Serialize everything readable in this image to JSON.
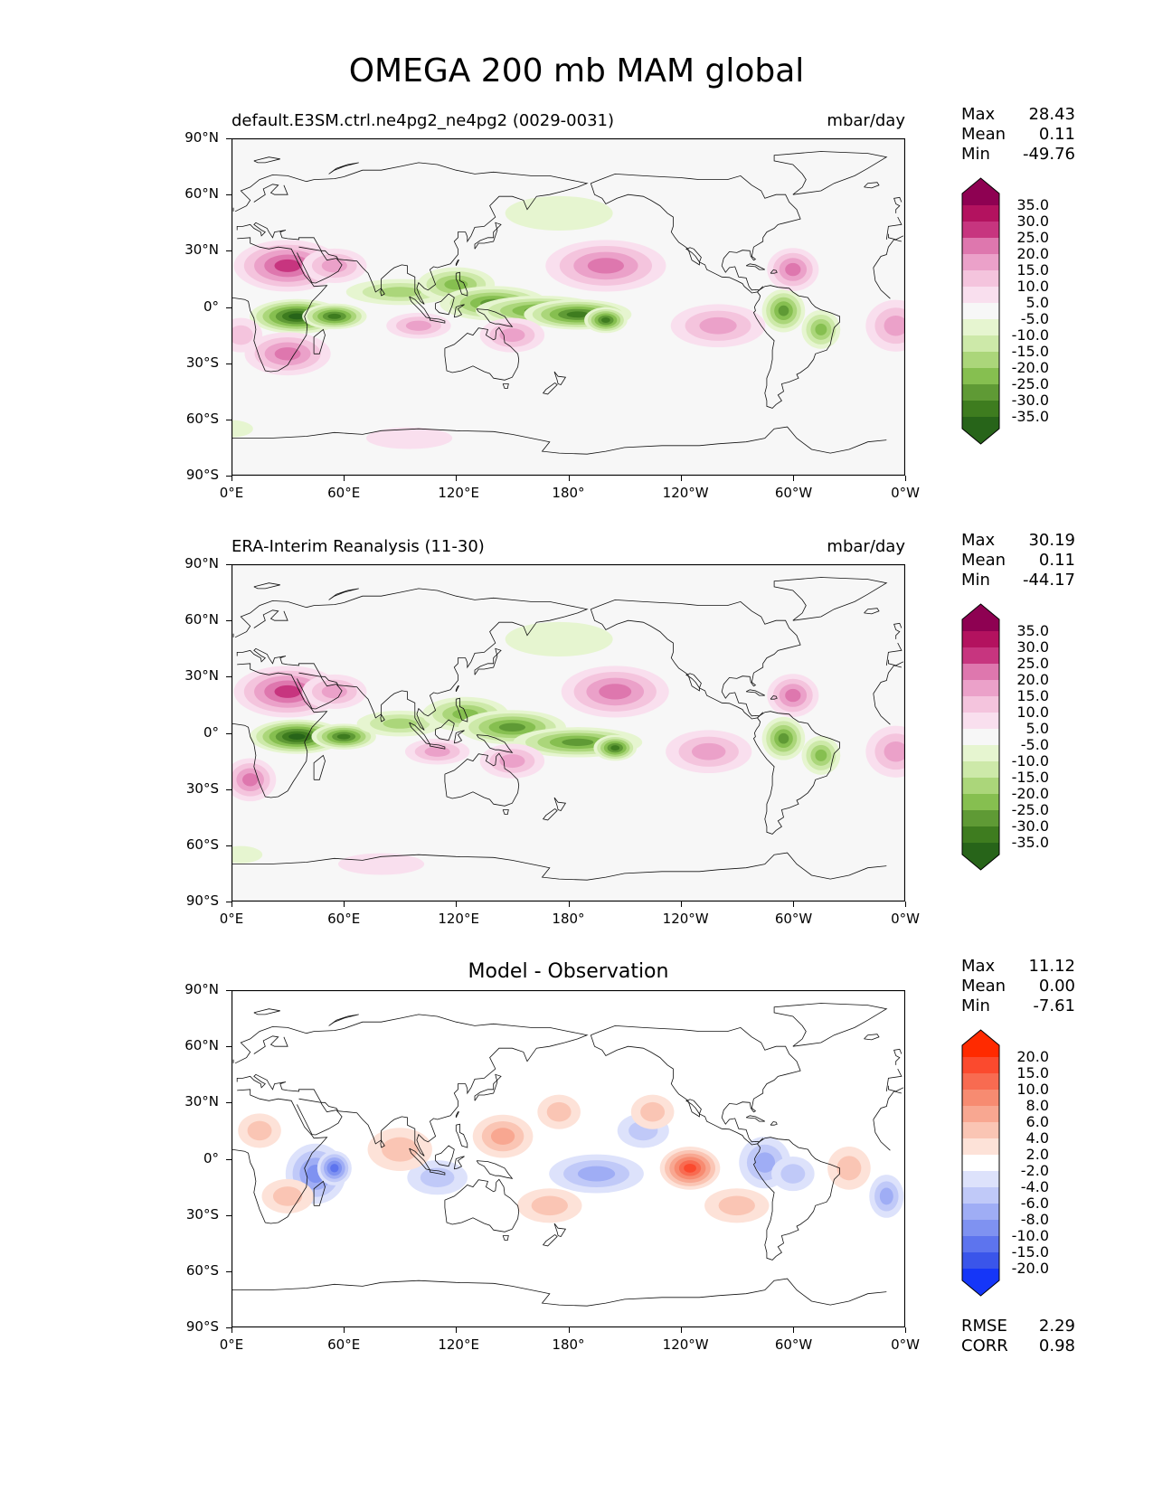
{
  "title": "OMEGA 200 mb MAM global",
  "lat_ticks": [
    "90°N",
    "60°N",
    "30°N",
    "0°",
    "30°S",
    "60°S",
    "90°S"
  ],
  "lon_ticks": [
    "0°E",
    "60°E",
    "120°E",
    "180°",
    "120°W",
    "60°W",
    "0°W"
  ],
  "panels": [
    {
      "id": "model",
      "subtitle_left": "default.E3SM.ctrl.ne4pg2_ne4pg2 (0029-0031)",
      "subtitle_right": "mbar/day",
      "subtitle_center": "",
      "stats": {
        "max_label": "Max",
        "max": "28.43",
        "mean_label": "Mean",
        "mean": "0.11",
        "min_label": "Min",
        "min": "-49.76"
      },
      "colorbar": {
        "labels": [
          "35.0",
          "30.0",
          "25.0",
          "20.0",
          "15.0",
          "10.0",
          "5.0",
          "-5.0",
          "-10.0",
          "-15.0",
          "-20.0",
          "-25.0",
          "-30.0",
          "-35.0"
        ],
        "colors": [
          "#8e0152",
          "#b3125f",
          "#c7357f",
          "#de77ae",
          "#eba1c9",
          "#f4c4dd",
          "#f9dfee",
          "#f7f7f7",
          "#e6f5d0",
          "#cde9a9",
          "#abd67a",
          "#86bf50",
          "#5f9a35",
          "#3e7c1f",
          "#276419"
        ]
      }
    },
    {
      "id": "obs",
      "subtitle_left": "ERA-Interim Reanalysis (11-30)",
      "subtitle_right": "mbar/day",
      "subtitle_center": "",
      "stats": {
        "max_label": "Max",
        "max": "30.19",
        "mean_label": "Mean",
        "mean": "0.11",
        "min_label": "Min",
        "min": "-44.17"
      },
      "colorbar": {
        "labels": [
          "35.0",
          "30.0",
          "25.0",
          "20.0",
          "15.0",
          "10.0",
          "5.0",
          "-5.0",
          "-10.0",
          "-15.0",
          "-20.0",
          "-25.0",
          "-30.0",
          "-35.0"
        ],
        "colors": [
          "#8e0152",
          "#b3125f",
          "#c7357f",
          "#de77ae",
          "#eba1c9",
          "#f4c4dd",
          "#f9dfee",
          "#f7f7f7",
          "#e6f5d0",
          "#cde9a9",
          "#abd67a",
          "#86bf50",
          "#5f9a35",
          "#3e7c1f",
          "#276419"
        ]
      }
    },
    {
      "id": "diff",
      "subtitle_left": "",
      "subtitle_right": "",
      "subtitle_center": "Model - Observation",
      "stats": {
        "max_label": "Max",
        "max": "11.12",
        "mean_label": "Mean",
        "mean": "0.00",
        "min_label": "Min",
        "min": "-7.61"
      },
      "colorbar": {
        "labels": [
          "20.0",
          "15.0",
          "10.0",
          "8.0",
          "6.0",
          "4.0",
          "2.0",
          "-2.0",
          "-4.0",
          "-6.0",
          "-8.0",
          "-10.0",
          "-15.0",
          "-20.0"
        ],
        "colors": [
          "#ff2a00",
          "#fb4a2e",
          "#f86b51",
          "#f78b71",
          "#f8a791",
          "#fac5b4",
          "#fde2d8",
          "#ffffff",
          "#dde2fb",
          "#c0c9f8",
          "#9fadf5",
          "#7f92f1",
          "#5d74ee",
          "#3a55ea",
          "#1536f8"
        ]
      },
      "error_stats": {
        "rmse_label": "RMSE",
        "rmse": "2.29",
        "corr_label": "CORR",
        "corr": "0.98"
      }
    }
  ]
}
